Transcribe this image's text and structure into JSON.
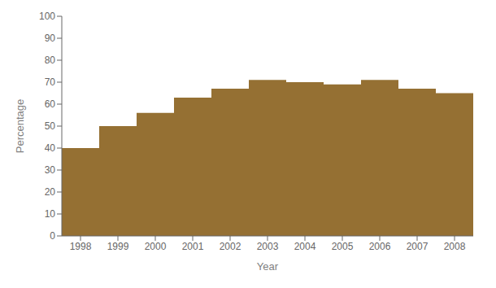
{
  "chart_data": {
    "type": "bar",
    "categories": [
      "1998",
      "1999",
      "2000",
      "2001",
      "2002",
      "2003",
      "2004",
      "2005",
      "2006",
      "2007",
      "2008"
    ],
    "values": [
      40,
      50,
      56,
      63,
      67,
      71,
      70,
      69,
      71,
      67,
      65
    ],
    "color": "#957033",
    "xlabel": "Year",
    "ylabel": "Percentage",
    "ylim": [
      0,
      100
    ],
    "yticks": [
      0,
      10,
      20,
      30,
      40,
      50,
      60,
      70,
      80,
      90,
      100
    ],
    "grid": false
  }
}
